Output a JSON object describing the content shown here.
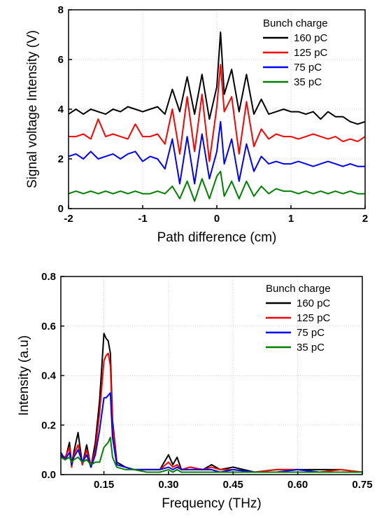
{
  "chart_data": [
    {
      "type": "line",
      "xlabel": "Path difference (cm)",
      "ylabel": "Signal voltage Intensity (V)",
      "xlim": [
        -2,
        2
      ],
      "ylim": [
        0,
        8
      ],
      "xticks": [
        "-2",
        "-1",
        "0",
        "1",
        "2"
      ],
      "yticks": [
        "0",
        "2",
        "4",
        "6",
        "8"
      ],
      "grid": true,
      "legend_title": "Bunch charge",
      "legend_position": "top-right",
      "series": [
        {
          "name": "160 pC",
          "color": "#000000",
          "x": [
            -2.0,
            -1.9,
            -1.8,
            -1.7,
            -1.6,
            -1.5,
            -1.4,
            -1.3,
            -1.2,
            -1.1,
            -1.0,
            -0.9,
            -0.8,
            -0.7,
            -0.6,
            -0.5,
            -0.4,
            -0.3,
            -0.2,
            -0.1,
            0.0,
            0.05,
            0.1,
            0.2,
            0.3,
            0.4,
            0.5,
            0.6,
            0.7,
            0.8,
            0.9,
            1.0,
            1.1,
            1.2,
            1.3,
            1.4,
            1.5,
            1.6,
            1.7,
            1.8,
            1.9,
            2.0
          ],
          "y": [
            3.8,
            4.0,
            3.8,
            4.0,
            3.9,
            3.8,
            4.0,
            3.9,
            4.1,
            4.0,
            3.9,
            4.0,
            4.1,
            3.8,
            4.8,
            3.9,
            5.3,
            3.8,
            5.4,
            3.6,
            4.9,
            7.1,
            4.6,
            5.6,
            3.9,
            5.4,
            3.8,
            4.4,
            3.8,
            3.9,
            4.0,
            3.9,
            3.9,
            3.8,
            3.9,
            3.6,
            3.9,
            3.7,
            3.7,
            3.5,
            3.4,
            3.5
          ]
        },
        {
          "name": "125 pC",
          "color": "#ff0000",
          "x": [
            -2.0,
            -1.9,
            -1.8,
            -1.7,
            -1.6,
            -1.5,
            -1.4,
            -1.3,
            -1.2,
            -1.1,
            -1.0,
            -0.9,
            -0.8,
            -0.7,
            -0.6,
            -0.5,
            -0.4,
            -0.3,
            -0.2,
            -0.1,
            0.0,
            0.05,
            0.1,
            0.2,
            0.3,
            0.4,
            0.5,
            0.6,
            0.7,
            0.8,
            0.9,
            1.0,
            1.1,
            1.2,
            1.3,
            1.4,
            1.5,
            1.6,
            1.7,
            1.8,
            1.9,
            2.0
          ],
          "y": [
            2.9,
            2.9,
            3.0,
            2.8,
            3.6,
            2.9,
            3.0,
            2.9,
            2.8,
            3.4,
            2.9,
            2.9,
            3.0,
            2.6,
            4.0,
            2.2,
            4.5,
            2.3,
            4.6,
            1.9,
            4.1,
            5.8,
            3.9,
            4.5,
            2.2,
            4.3,
            2.5,
            3.2,
            2.8,
            3.0,
            2.9,
            2.9,
            2.8,
            2.9,
            3.0,
            2.9,
            2.8,
            2.9,
            2.7,
            2.8,
            2.7,
            2.9
          ]
        },
        {
          "name": "75 pC",
          "color": "#0000ff",
          "x": [
            -2.0,
            -1.9,
            -1.8,
            -1.7,
            -1.6,
            -1.5,
            -1.4,
            -1.3,
            -1.2,
            -1.1,
            -1.0,
            -0.9,
            -0.8,
            -0.7,
            -0.6,
            -0.5,
            -0.4,
            -0.3,
            -0.2,
            -0.1,
            0.0,
            0.05,
            0.1,
            0.2,
            0.3,
            0.4,
            0.5,
            0.6,
            0.7,
            0.8,
            0.9,
            1.0,
            1.1,
            1.2,
            1.3,
            1.4,
            1.5,
            1.6,
            1.7,
            1.8,
            1.9,
            2.0
          ],
          "y": [
            2.1,
            2.2,
            2.0,
            2.3,
            2.0,
            2.1,
            2.2,
            2.0,
            2.2,
            2.3,
            1.9,
            2.1,
            2.0,
            1.6,
            2.8,
            1.0,
            2.9,
            1.0,
            3.0,
            1.2,
            2.3,
            3.5,
            1.8,
            2.8,
            1.1,
            2.6,
            1.5,
            2.1,
            1.8,
            1.9,
            1.8,
            1.8,
            1.9,
            1.8,
            1.7,
            1.8,
            1.9,
            1.8,
            1.7,
            1.8,
            1.7,
            1.7
          ]
        },
        {
          "name": "35 pC",
          "color": "#008000",
          "x": [
            -2.0,
            -1.9,
            -1.8,
            -1.7,
            -1.6,
            -1.5,
            -1.4,
            -1.3,
            -1.2,
            -1.1,
            -1.0,
            -0.9,
            -0.8,
            -0.7,
            -0.6,
            -0.5,
            -0.4,
            -0.3,
            -0.2,
            -0.1,
            0.0,
            0.05,
            0.1,
            0.2,
            0.3,
            0.4,
            0.5,
            0.6,
            0.7,
            0.8,
            0.9,
            1.0,
            1.1,
            1.2,
            1.3,
            1.4,
            1.5,
            1.6,
            1.7,
            1.8,
            1.9,
            2.0
          ],
          "y": [
            0.6,
            0.7,
            0.6,
            0.7,
            0.6,
            0.7,
            0.6,
            0.7,
            0.6,
            0.7,
            0.6,
            0.6,
            0.7,
            0.6,
            0.9,
            0.4,
            1.1,
            0.3,
            1.2,
            0.4,
            1.3,
            1.5,
            0.5,
            1.1,
            0.4,
            1.1,
            0.5,
            0.9,
            0.6,
            0.8,
            0.7,
            0.7,
            0.6,
            0.7,
            0.6,
            0.7,
            0.6,
            0.7,
            0.6,
            0.7,
            0.6,
            0.6
          ]
        }
      ]
    },
    {
      "type": "line",
      "xlabel": "Frequency (THz)",
      "ylabel": "Intensity (a.u)",
      "xlim": [
        0.05,
        0.75
      ],
      "ylim": [
        0,
        0.8
      ],
      "xticks": [
        "0.15",
        "0.30",
        "0.45",
        "0.60",
        "0.75"
      ],
      "yticks": [
        "0.0",
        "0.2",
        "0.4",
        "0.6",
        "0.8"
      ],
      "grid": true,
      "legend_title": "Bunch charge",
      "legend_position": "top-right",
      "series": [
        {
          "name": "160 pC",
          "color": "#000000",
          "x": [
            0.05,
            0.06,
            0.07,
            0.075,
            0.08,
            0.09,
            0.1,
            0.11,
            0.12,
            0.13,
            0.14,
            0.15,
            0.155,
            0.16,
            0.165,
            0.17,
            0.18,
            0.2,
            0.22,
            0.25,
            0.28,
            0.3,
            0.31,
            0.32,
            0.33,
            0.35,
            0.38,
            0.4,
            0.42,
            0.45,
            0.5,
            0.55,
            0.6,
            0.65,
            0.7,
            0.75
          ],
          "y": [
            0.08,
            0.06,
            0.13,
            0.04,
            0.09,
            0.17,
            0.04,
            0.12,
            0.03,
            0.13,
            0.3,
            0.57,
            0.55,
            0.54,
            0.49,
            0.22,
            0.05,
            0.03,
            0.02,
            0.02,
            0.02,
            0.08,
            0.04,
            0.07,
            0.02,
            0.03,
            0.02,
            0.04,
            0.02,
            0.03,
            0.01,
            0.02,
            0.02,
            0.02,
            0.02,
            0.01
          ]
        },
        {
          "name": "125 pC",
          "color": "#ff0000",
          "x": [
            0.05,
            0.06,
            0.07,
            0.075,
            0.08,
            0.09,
            0.1,
            0.11,
            0.12,
            0.13,
            0.14,
            0.15,
            0.155,
            0.16,
            0.165,
            0.17,
            0.18,
            0.2,
            0.22,
            0.25,
            0.28,
            0.3,
            0.31,
            0.32,
            0.33,
            0.35,
            0.38,
            0.4,
            0.42,
            0.45,
            0.5,
            0.55,
            0.6,
            0.65,
            0.7,
            0.75
          ],
          "y": [
            0.08,
            0.07,
            0.11,
            0.03,
            0.08,
            0.12,
            0.04,
            0.1,
            0.03,
            0.1,
            0.25,
            0.46,
            0.48,
            0.49,
            0.44,
            0.2,
            0.04,
            0.03,
            0.02,
            0.02,
            0.02,
            0.05,
            0.03,
            0.04,
            0.02,
            0.03,
            0.02,
            0.03,
            0.02,
            0.02,
            0.01,
            0.02,
            0.02,
            0.01,
            0.02,
            0.01
          ]
        },
        {
          "name": "75 pC",
          "color": "#0000ff",
          "x": [
            0.05,
            0.06,
            0.07,
            0.075,
            0.08,
            0.09,
            0.1,
            0.11,
            0.12,
            0.13,
            0.14,
            0.15,
            0.155,
            0.16,
            0.165,
            0.17,
            0.18,
            0.2,
            0.22,
            0.25,
            0.28,
            0.3,
            0.31,
            0.32,
            0.33,
            0.35,
            0.38,
            0.4,
            0.42,
            0.45,
            0.5,
            0.55,
            0.6,
            0.65,
            0.7,
            0.75
          ],
          "y": [
            0.09,
            0.06,
            0.09,
            0.04,
            0.07,
            0.1,
            0.05,
            0.08,
            0.03,
            0.08,
            0.18,
            0.31,
            0.31,
            0.32,
            0.33,
            0.15,
            0.04,
            0.03,
            0.02,
            0.02,
            0.02,
            0.03,
            0.02,
            0.03,
            0.02,
            0.02,
            0.02,
            0.02,
            0.01,
            0.02,
            0.01,
            0.01,
            0.02,
            0.01,
            0.01,
            0.01
          ]
        },
        {
          "name": "35 pC",
          "color": "#008000",
          "x": [
            0.05,
            0.06,
            0.07,
            0.075,
            0.08,
            0.09,
            0.1,
            0.11,
            0.12,
            0.13,
            0.14,
            0.15,
            0.155,
            0.16,
            0.165,
            0.17,
            0.18,
            0.2,
            0.22,
            0.25,
            0.28,
            0.3,
            0.31,
            0.32,
            0.33,
            0.35,
            0.38,
            0.4,
            0.42,
            0.45,
            0.5,
            0.55,
            0.6,
            0.65,
            0.7,
            0.75
          ],
          "y": [
            0.07,
            0.06,
            0.07,
            0.05,
            0.06,
            0.07,
            0.05,
            0.06,
            0.04,
            0.05,
            0.05,
            0.11,
            0.12,
            0.13,
            0.15,
            0.07,
            0.03,
            0.02,
            0.02,
            0.01,
            0.01,
            0.02,
            0.01,
            0.02,
            0.01,
            0.01,
            0.01,
            0.01,
            0.01,
            0.01,
            0.01,
            0.01,
            0.01,
            0.01,
            0.01,
            0.01
          ]
        }
      ]
    }
  ]
}
